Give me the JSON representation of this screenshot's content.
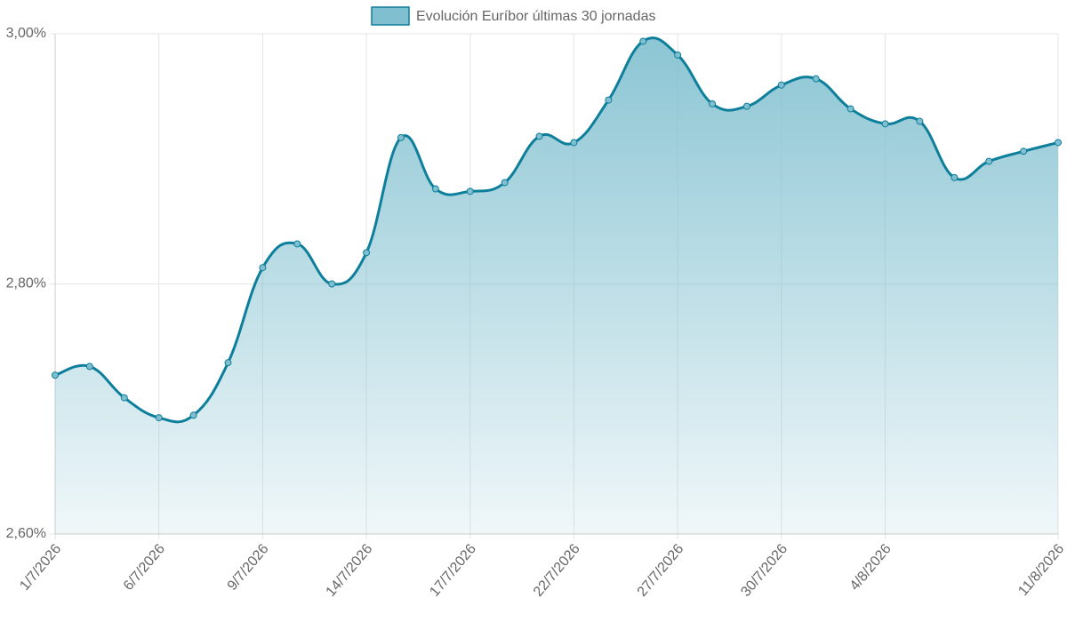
{
  "chart_data": {
    "type": "line",
    "categories": [
      "1/7/2026",
      null,
      null,
      "6/7/2026",
      null,
      null,
      "9/7/2026",
      null,
      null,
      "14/7/2026",
      null,
      null,
      "17/7/2026",
      null,
      null,
      "22/7/2026",
      null,
      null,
      "27/7/2026",
      null,
      null,
      "30/7/2026",
      null,
      null,
      "4/8/2026",
      null,
      null,
      null,
      null,
      "11/8/2026"
    ],
    "series": [
      {
        "name": "Evolución Euríbor últimas 30 jornadas",
        "color": "#0e7f9b",
        "values": [
          2.727,
          2.734,
          2.709,
          2.693,
          2.695,
          2.737,
          2.813,
          2.832,
          2.8,
          2.825,
          2.917,
          2.876,
          2.874,
          2.881,
          2.918,
          2.913,
          2.947,
          2.994,
          2.983,
          2.944,
          2.942,
          2.959,
          2.964,
          2.94,
          2.928,
          2.93,
          2.885,
          2.898,
          2.906,
          2.913
        ]
      }
    ],
    "ylim": [
      2.6,
      3.0
    ],
    "yticks": [
      {
        "value": 2.6,
        "label": "2,60%"
      },
      {
        "value": 2.8,
        "label": "2,80%"
      },
      {
        "value": 3.0,
        "label": "3,00%"
      }
    ],
    "grid": true,
    "legend": "top"
  }
}
